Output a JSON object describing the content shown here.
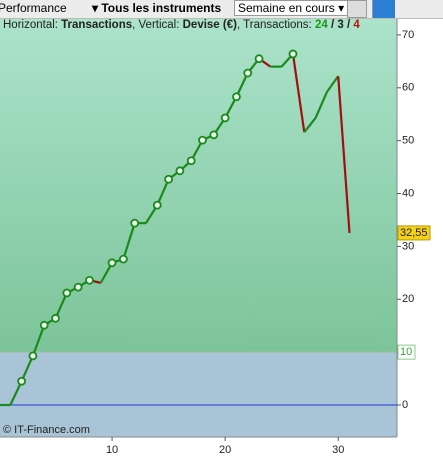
{
  "toolbar": {
    "performance": "Performance",
    "instruments": "Tous les instruments",
    "period": "Semaine en cours"
  },
  "info": [
    "Horizontal: ",
    "Transactions",
    ", Vertical: ",
    "Devise (€)",
    ", Transactions: ",
    "24",
    " / ",
    "3",
    " / ",
    "4"
  ],
  "chart_data": {
    "type": "line",
    "x": [
      0,
      1,
      2,
      3,
      4,
      5,
      6,
      7,
      8,
      9,
      10,
      11,
      12,
      13,
      14,
      15,
      16,
      17,
      18,
      19,
      20,
      21,
      22,
      23,
      24,
      25,
      26,
      27,
      28,
      29,
      30,
      31
    ],
    "series": [
      {
        "color": "#1a8a1a",
        "down_color": "#a01010",
        "values": [
          0,
          0,
          4.5,
          9.3,
          15.1,
          16.4,
          21.2,
          22.3,
          23.6,
          23.1,
          26.9,
          27.6,
          34.4,
          34.4,
          37.8,
          42.7,
          44.3,
          46.2,
          50.1,
          51.1,
          54.3,
          58.3,
          62.8,
          65.5,
          64,
          64,
          66.4,
          51.6,
          54.3,
          59.2,
          62.2,
          32.55
        ],
        "markers": [
          false,
          false,
          true,
          true,
          true,
          true,
          true,
          true,
          true,
          false,
          true,
          true,
          true,
          false,
          true,
          true,
          true,
          true,
          true,
          true,
          true,
          true,
          true,
          true,
          false,
          false,
          true,
          false,
          false,
          false,
          false,
          false
        ]
      }
    ],
    "current": {
      "value": 32.55,
      "label": "32,55"
    },
    "threshold": 10,
    "zero_line": 0,
    "xlim": [
      0,
      35.2
    ],
    "xticks": [
      10,
      20,
      30
    ],
    "ylim": [
      -6.05,
      73.2
    ],
    "yticks": [
      0,
      10,
      20,
      30,
      40,
      50,
      60,
      70
    ],
    "watermark": "© IT-Finance.com"
  }
}
